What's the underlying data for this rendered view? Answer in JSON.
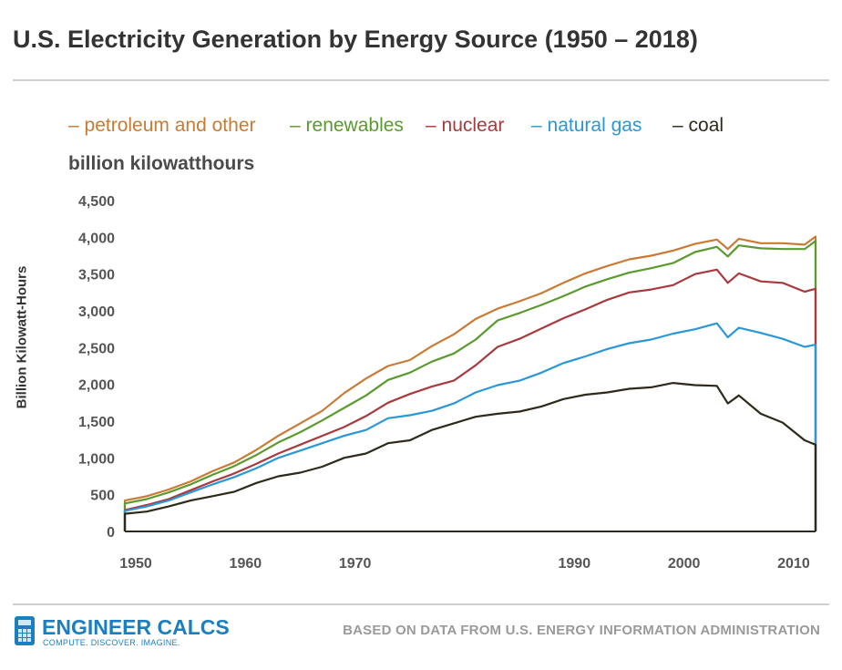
{
  "title": "U.S. Electricity Generation by Energy Source (1950 – 2018)",
  "unit_label": "billion kilowatthours",
  "source_text": "BASED ON DATA FROM U.S. ENERGY INFORMATION ADMINISTRATION",
  "brand": {
    "name": "ENGINEER CALCS",
    "tagline": "COMPUTE. DISCOVER. IMAGINE."
  },
  "legend": [
    {
      "dash": "–",
      "label": "petroleum and other",
      "color": "#c97a34"
    },
    {
      "dash": "–",
      "label": "renewables",
      "color": "#5a9a2e"
    },
    {
      "dash": "–",
      "label": "nuclear",
      "color": "#a83a3e"
    },
    {
      "dash": "–",
      "label": "natural gas",
      "color": "#2a97d6"
    },
    {
      "dash": "–",
      "label": "coal",
      "color": "#2d2a1c"
    }
  ],
  "chart_data": {
    "type": "area",
    "stacked": true,
    "title": "U.S. Electricity Generation by Energy Source (1950 – 2018)",
    "xlabel": "",
    "ylabel": "Billion Kilowatt-Hours",
    "xlim": [
      1949,
      2012
    ],
    "ylim": [
      0,
      4500
    ],
    "x_ticks": [
      1950,
      1960,
      1970,
      1990,
      2000,
      2010
    ],
    "x_tick_labels": [
      "1950",
      "1960",
      "1970",
      "1990",
      "2000",
      "2010"
    ],
    "y_ticks": [
      0,
      500,
      1000,
      1500,
      2000,
      2500,
      3000,
      3500,
      4000,
      4500
    ],
    "y_tick_labels": [
      "0",
      "500",
      "1,000",
      "1,500",
      "2,000",
      "2,500",
      "3,000",
      "3,500",
      "4,000",
      "4,500"
    ],
    "grid": false,
    "legend_position": "top",
    "x": [
      1949,
      1951,
      1953,
      1955,
      1957,
      1959,
      1961,
      1963,
      1965,
      1967,
      1969,
      1971,
      1973,
      1975,
      1977,
      1979,
      1981,
      1983,
      1985,
      1987,
      1989,
      1991,
      1993,
      1995,
      1997,
      1999,
      2001,
      2003,
      2004,
      2005,
      2007,
      2009,
      2011,
      2012
    ],
    "series": [
      {
        "name": "coal",
        "color": "#2d2a1c",
        "values": [
          240,
          270,
          340,
          420,
          480,
          540,
          660,
          750,
          800,
          880,
          1000,
          1060,
          1200,
          1240,
          1380,
          1470,
          1560,
          1600,
          1630,
          1700,
          1800,
          1860,
          1890,
          1940,
          1960,
          2020,
          1990,
          1980,
          1740,
          1850,
          1600,
          1480,
          1240,
          1180
        ]
      },
      {
        "name": "natural gas",
        "color": "#2a97d6",
        "values": [
          280,
          340,
          420,
          530,
          640,
          740,
          860,
          1000,
          1100,
          1200,
          1300,
          1380,
          1540,
          1580,
          1640,
          1740,
          1890,
          1990,
          2050,
          2160,
          2290,
          2380,
          2480,
          2560,
          2610,
          2690,
          2750,
          2830,
          2640,
          2770,
          2700,
          2620,
          2510,
          2540
        ]
      },
      {
        "name": "nuclear",
        "color": "#a83a3e",
        "values": [
          290,
          360,
          440,
          560,
          680,
          790,
          920,
          1060,
          1180,
          1300,
          1420,
          1570,
          1750,
          1870,
          1970,
          2050,
          2260,
          2510,
          2620,
          2760,
          2900,
          3020,
          3150,
          3250,
          3290,
          3350,
          3500,
          3560,
          3380,
          3510,
          3400,
          3380,
          3260,
          3300
        ]
      },
      {
        "name": "renewables",
        "color": "#5a9a2e",
        "values": [
          380,
          440,
          530,
          640,
          770,
          890,
          1040,
          1210,
          1350,
          1510,
          1680,
          1850,
          2060,
          2160,
          2310,
          2420,
          2610,
          2870,
          2970,
          3080,
          3200,
          3330,
          3430,
          3520,
          3580,
          3650,
          3800,
          3870,
          3740,
          3890,
          3850,
          3840,
          3840,
          3950
        ]
      },
      {
        "name": "petroleum and other",
        "color": "#c97a34",
        "values": [
          420,
          480,
          570,
          680,
          820,
          940,
          1110,
          1300,
          1470,
          1640,
          1880,
          2080,
          2250,
          2330,
          2520,
          2680,
          2890,
          3030,
          3130,
          3240,
          3380,
          3510,
          3610,
          3700,
          3750,
          3820,
          3910,
          3970,
          3840,
          3980,
          3920,
          3920,
          3900,
          4010
        ]
      }
    ]
  }
}
